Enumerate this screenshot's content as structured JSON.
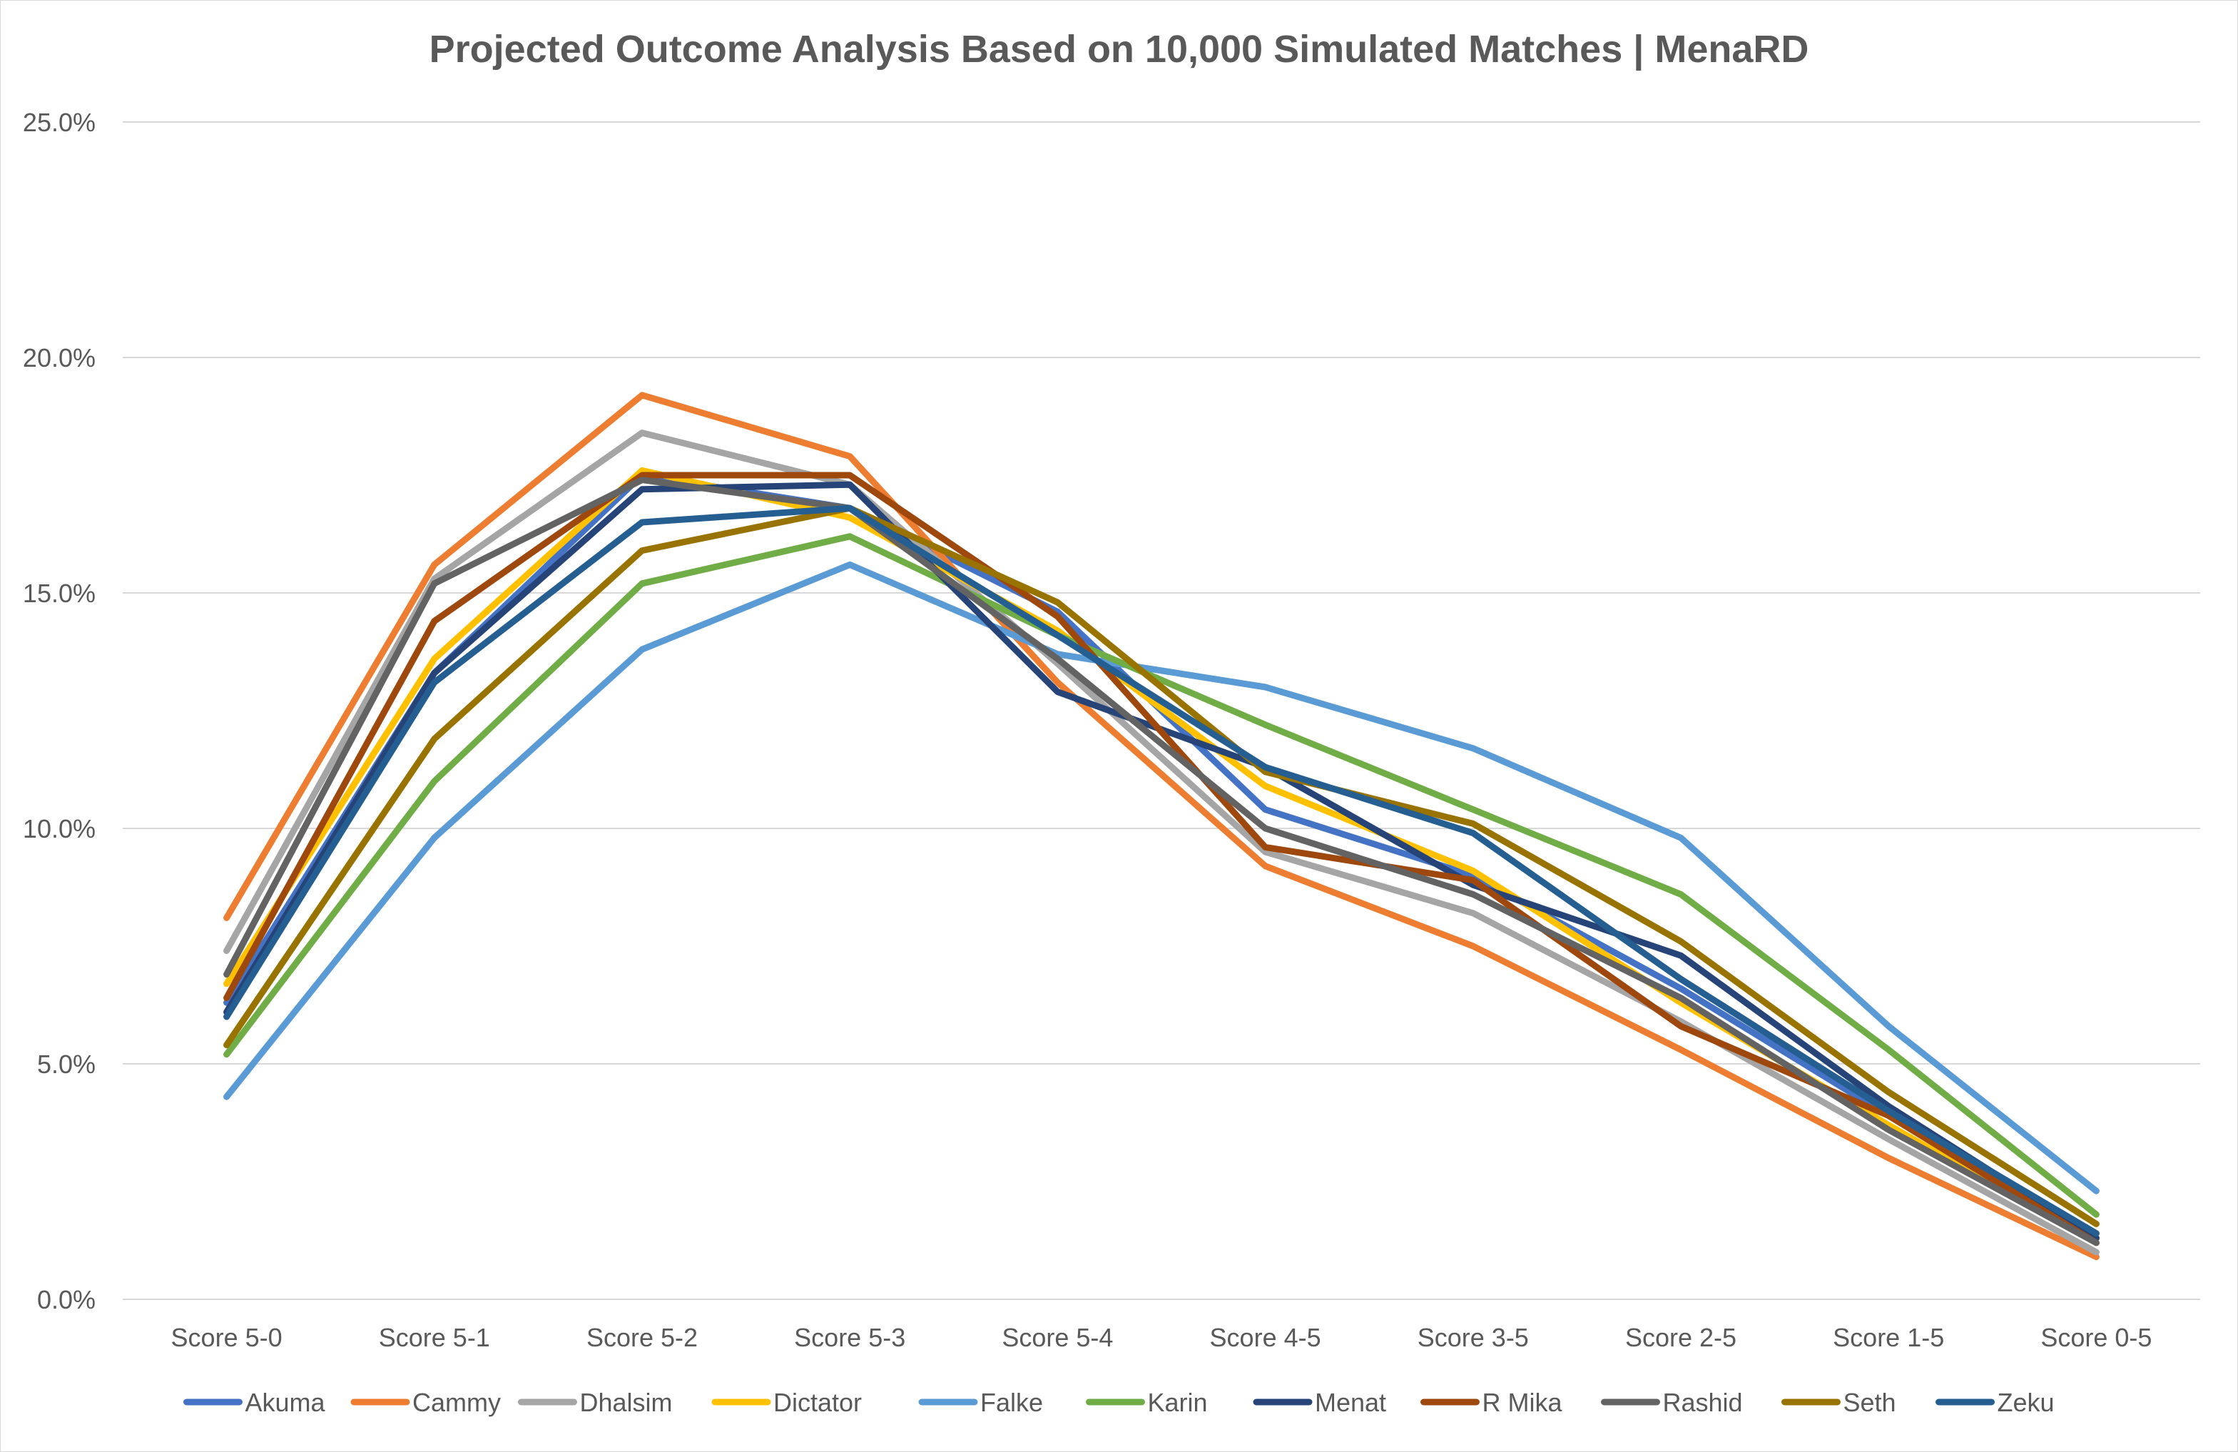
{
  "chart_data": {
    "type": "line",
    "title": "Projected Outcome Analysis Based on 10,000 Simulated Matches | MenaRD",
    "xlabel": "",
    "ylabel": "",
    "ylim": [
      0,
      25
    ],
    "y_ticks": [
      "0.0%",
      "5.0%",
      "10.0%",
      "15.0%",
      "20.0%",
      "25.0%"
    ],
    "grid": "horizontal",
    "legend_position": "bottom",
    "categories": [
      "Score 5-0",
      "Score 5-1",
      "Score 5-2",
      "Score 5-3",
      "Score 5-4",
      "Score 4-5",
      "Score 3-5",
      "Score 2-5",
      "Score 1-5",
      "Score 0-5"
    ],
    "series": [
      {
        "name": "Akuma",
        "color": "#4472C4",
        "values": [
          6.3,
          13.3,
          17.5,
          16.8,
          14.6,
          10.4,
          9.0,
          6.6,
          3.9,
          1.3
        ]
      },
      {
        "name": "Cammy",
        "color": "#ED7D31",
        "values": [
          8.1,
          15.6,
          19.2,
          17.9,
          13.1,
          9.2,
          7.5,
          5.3,
          3.0,
          0.9
        ]
      },
      {
        "name": "Dhalsim",
        "color": "#A5A5A5",
        "values": [
          7.4,
          15.3,
          18.4,
          17.3,
          13.5,
          9.5,
          8.2,
          5.9,
          3.4,
          1.0
        ]
      },
      {
        "name": "Dictator",
        "color": "#FFC000",
        "values": [
          6.7,
          13.6,
          17.6,
          16.6,
          14.2,
          10.9,
          9.1,
          6.3,
          3.7,
          1.2
        ]
      },
      {
        "name": "Falke",
        "color": "#5B9BD5",
        "values": [
          4.3,
          9.8,
          13.8,
          15.6,
          13.7,
          13.0,
          11.7,
          9.8,
          5.8,
          2.3
        ]
      },
      {
        "name": "Karin",
        "color": "#70AD47",
        "values": [
          5.2,
          11.0,
          15.2,
          16.2,
          14.1,
          12.2,
          10.4,
          8.6,
          5.3,
          1.8
        ]
      },
      {
        "name": "Menat",
        "color": "#264478",
        "values": [
          6.1,
          13.3,
          17.2,
          17.3,
          12.9,
          11.3,
          8.8,
          7.3,
          4.1,
          1.3
        ]
      },
      {
        "name": "R Mika",
        "color": "#9E480E",
        "values": [
          6.4,
          14.4,
          17.5,
          17.5,
          14.5,
          9.6,
          8.9,
          5.8,
          3.9,
          1.2
        ]
      },
      {
        "name": "Rashid",
        "color": "#636363",
        "values": [
          6.9,
          15.2,
          17.4,
          16.8,
          13.6,
          10.0,
          8.6,
          6.4,
          3.6,
          1.2
        ]
      },
      {
        "name": "Seth",
        "color": "#997300",
        "values": [
          5.4,
          11.9,
          15.9,
          16.8,
          14.8,
          11.2,
          10.1,
          7.6,
          4.4,
          1.6
        ]
      },
      {
        "name": "Zeku",
        "color": "#255E91",
        "values": [
          6.0,
          13.1,
          16.5,
          16.8,
          14.1,
          11.3,
          9.9,
          6.8,
          4.0,
          1.4
        ]
      }
    ]
  }
}
